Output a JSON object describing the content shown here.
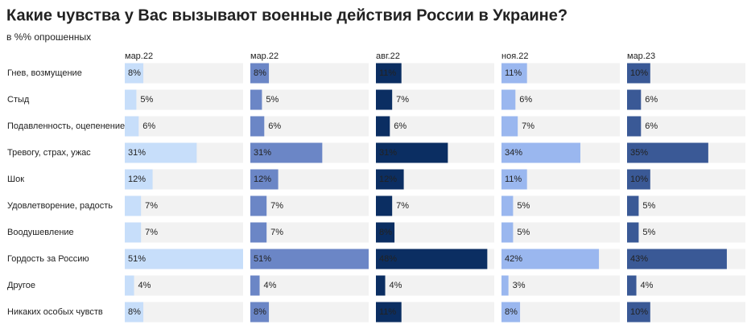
{
  "chart_data": {
    "type": "bar",
    "title": "Какие чувства у Вас вызывают военные действия России в Украине?",
    "subtitle": "в %% опрошенных",
    "categories": [
      "Гнев, возмущение",
      "Стыд",
      "Подавленность, оцепенение",
      "Тревогу, страх, ужас",
      "Шок",
      "Удовлетворение, радость",
      "Воодушевление",
      "Гордость за Россию",
      "Другое",
      "Никаких особых чувств"
    ],
    "series": [
      {
        "name": "мар.22",
        "color": "#c7defa",
        "values": [
          8,
          5,
          6,
          31,
          12,
          7,
          7,
          51,
          4,
          8
        ],
        "value_labels": [
          "8%",
          "5%",
          "6%",
          "31%",
          "12%",
          "7%",
          "7%",
          "51%",
          "4%",
          "8%"
        ]
      },
      {
        "name": "мар.22",
        "color": "#6b86c6",
        "values": [
          8,
          5,
          6,
          31,
          12,
          7,
          7,
          51,
          4,
          8
        ],
        "value_labels": [
          "8%",
          "5%",
          "6%",
          "31%",
          "12%",
          "7%",
          "7%",
          "51%",
          "4%",
          "8%"
        ]
      },
      {
        "name": "авг.22",
        "color": "#0b2e62",
        "values": [
          11,
          7,
          6,
          31,
          12,
          7,
          8,
          48,
          4,
          11
        ],
        "value_labels": [
          "11%",
          "7%",
          "6%",
          "31%",
          "12%",
          "7%",
          "8%",
          "48%",
          "4%",
          "11%"
        ]
      },
      {
        "name": "ноя.22",
        "color": "#9ab7ef",
        "values": [
          11,
          6,
          7,
          34,
          11,
          5,
          5,
          42,
          3,
          8
        ],
        "value_labels": [
          "11%",
          "6%",
          "7%",
          "34%",
          "11%",
          "5%",
          "5%",
          "42%",
          "3%",
          "8%"
        ]
      },
      {
        "name": "мар.23",
        "color": "#3a5996",
        "values": [
          10,
          6,
          6,
          35,
          10,
          5,
          5,
          43,
          4,
          10
        ],
        "value_labels": [
          "10%",
          "6%",
          "6%",
          "35%",
          "10%",
          "5%",
          "5%",
          "43%",
          "4%",
          "10%"
        ]
      }
    ]
  }
}
